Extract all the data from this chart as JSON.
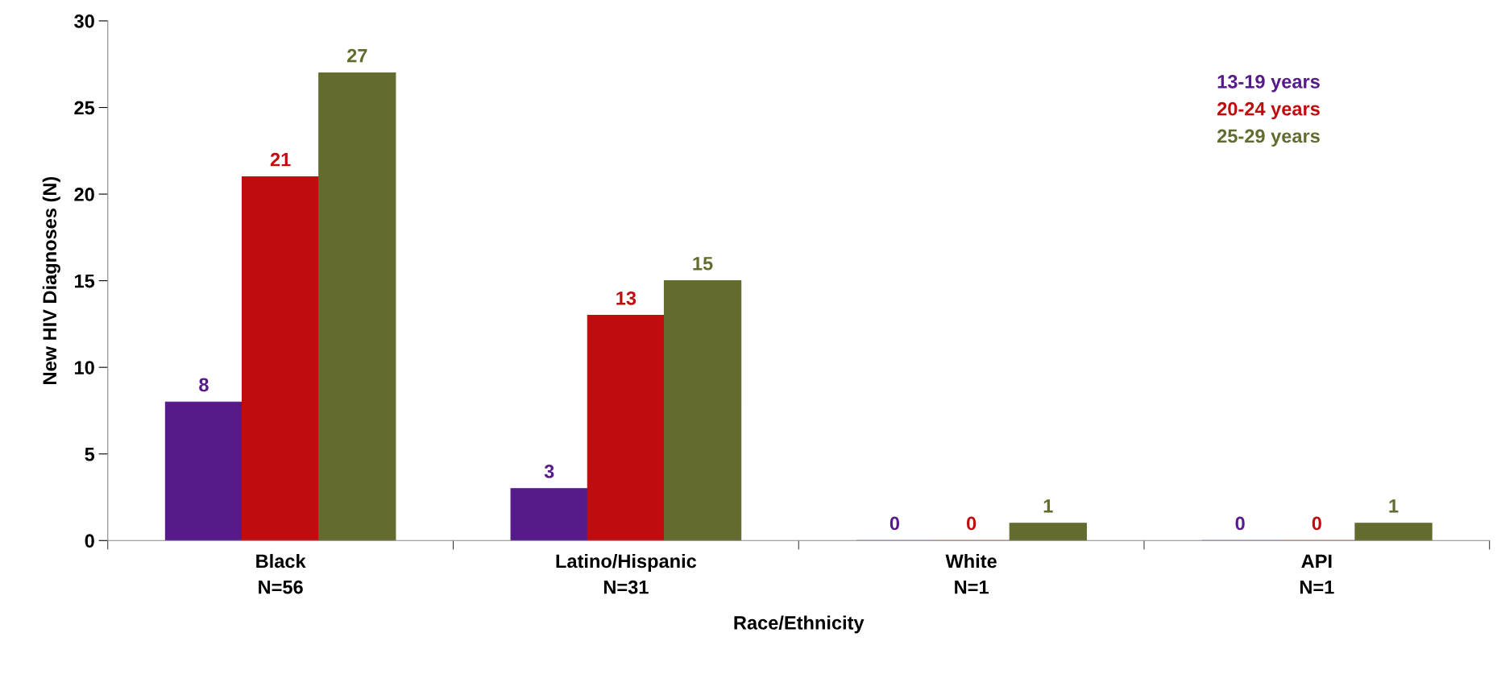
{
  "chart_data": {
    "type": "bar",
    "xlabel": "Race/Ethnicity",
    "ylabel": "New HIV Diagnoses (N)",
    "categories": [
      "Black\nN=56",
      "Latino/Hispanic\nN=31",
      "White\nN=1",
      "API\nN=1"
    ],
    "series": [
      {
        "name": "13-19 years",
        "color": "#561a8b",
        "values": [
          8,
          3,
          0,
          0
        ],
        "value_labels": [
          "8",
          "3",
          "0",
          "0"
        ]
      },
      {
        "name": "20-24 years",
        "color": "#c00c0e",
        "values": [
          21,
          13,
          0,
          0
        ],
        "value_labels": [
          "21",
          "13",
          "0",
          "0"
        ]
      },
      {
        "name": "25-29 years",
        "color": "#636b2f",
        "values": [
          27,
          15,
          1,
          1
        ],
        "value_labels": [
          "27",
          "15",
          "1",
          "1"
        ]
      }
    ],
    "ylim": [
      0,
      30
    ],
    "yticks": [
      0,
      5,
      10,
      15,
      20,
      25,
      30
    ],
    "grid": false,
    "legend": "top right"
  }
}
